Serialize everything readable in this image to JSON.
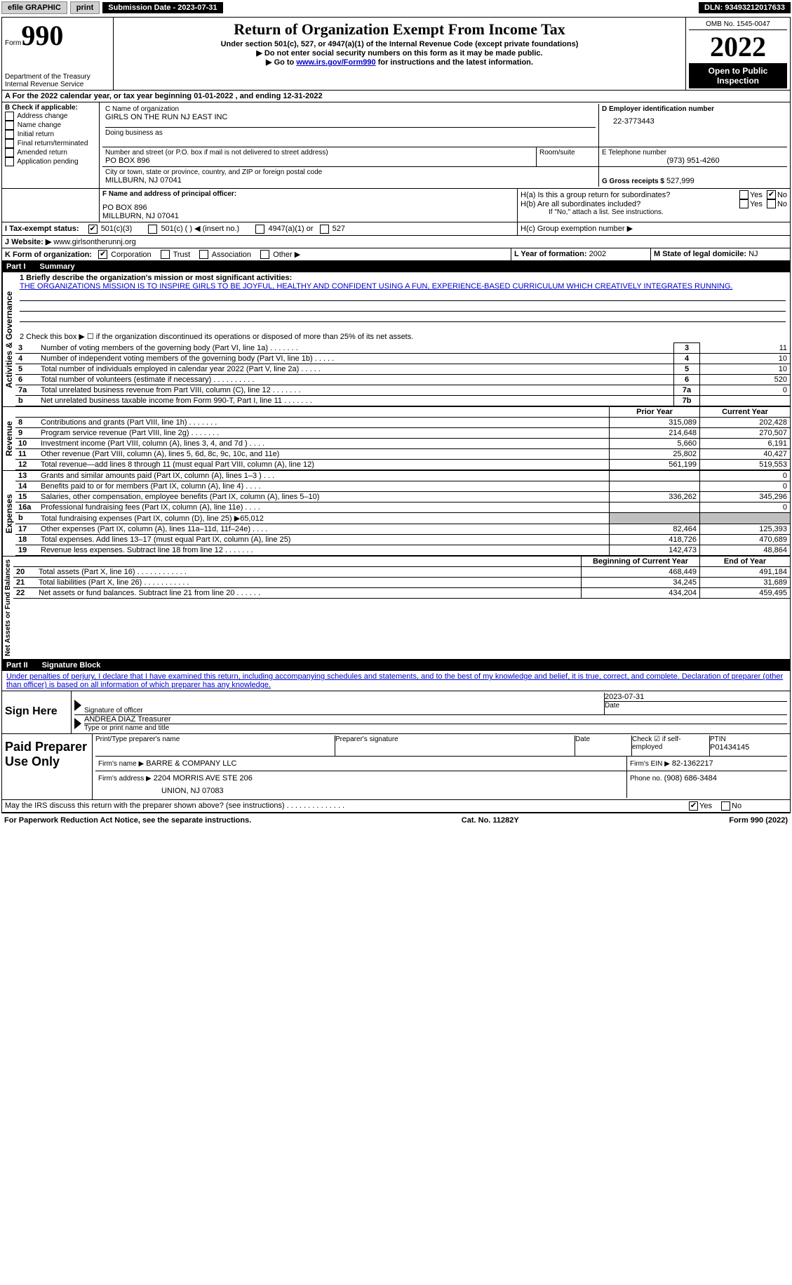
{
  "topbar": {
    "efile": "efile GRAPHIC",
    "print": "print",
    "submission": "Submission Date - 2023-07-31",
    "dln": "DLN: 93493212017633"
  },
  "header": {
    "form_prefix": "Form",
    "form_no": "990",
    "dept": "Department of the Treasury\nInternal Revenue Service",
    "title": "Return of Organization Exempt From Income Tax",
    "subtitle": "Under section 501(c), 527, or 4947(a)(1) of the Internal Revenue Code (except private foundations)",
    "inst1": "▶ Do not enter social security numbers on this form as it may be made public.",
    "inst2_pre": "▶ Go to ",
    "inst2_link": "www.irs.gov/Form990",
    "inst2_post": " for instructions and the latest information.",
    "omb": "OMB No. 1545-0047",
    "year": "2022",
    "open": "Open to Public Inspection"
  },
  "section_a": {
    "line": "A For the 2022 calendar year, or tax year beginning 01-01-2022    , and ending 12-31-2022"
  },
  "section_b": {
    "label": "B Check if applicable:",
    "items": [
      "Address change",
      "Name change",
      "Initial return",
      "Final return/terminated",
      "Amended return",
      "Application pending"
    ]
  },
  "section_c": {
    "label": "C Name of organization",
    "name": "GIRLS ON THE RUN NJ EAST INC",
    "dba_label": "Doing business as",
    "addr_label": "Number and street (or P.O. box if mail is not delivered to street address)",
    "addr": "PO BOX 896",
    "room_label": "Room/suite",
    "city_label": "City or town, state or province, country, and ZIP or foreign postal code",
    "city": "MILLBURN, NJ  07041"
  },
  "section_d": {
    "label": "D Employer identification number",
    "value": "22-3773443"
  },
  "section_e": {
    "label": "E Telephone number",
    "value": "(973) 951-4260"
  },
  "section_g": {
    "label": "G Gross receipts $",
    "value": "527,999"
  },
  "section_f": {
    "label": "F Name and address of principal officer:",
    "addr1": "PO BOX 896",
    "addr2": "MILLBURN, NJ  07041"
  },
  "section_h": {
    "ha": "H(a)  Is this a group return for subordinates?",
    "hb": "H(b)  Are all subordinates included?",
    "hb_note": "If \"No,\" attach a list. See instructions.",
    "hc": "H(c)  Group exemption number ▶",
    "yes": "Yes",
    "no": "No"
  },
  "section_i": {
    "label": "I    Tax-exempt status:",
    "opt1": "501(c)(3)",
    "opt2": "501(c) (   ) ◀ (insert no.)",
    "opt3": "4947(a)(1) or",
    "opt4": "527"
  },
  "section_j": {
    "label": "J   Website: ▶",
    "value": "www.girlsontherunnj.org"
  },
  "section_k": {
    "label": "K Form of organization:",
    "opts": [
      "Corporation",
      "Trust",
      "Association",
      "Other ▶"
    ]
  },
  "section_l": {
    "label": "L Year of formation:",
    "value": "2002"
  },
  "section_m": {
    "label": "M State of legal domicile:",
    "value": "NJ"
  },
  "part1": {
    "title_pt": "Part I",
    "title": "Summary",
    "q1_label": "1  Briefly describe the organization's mission or most significant activities:",
    "q1_text": "THE ORGANIZATIONS MISSION IS TO INSPIRE GIRLS TO BE JOYFUL, HEALTHY AND CONFIDENT USING A FUN, EXPERIENCE-BASED CURRICULUM WHICH CREATIVELY INTEGRATES RUNNING.",
    "q2": "2    Check this box ▶ ☐  if the organization discontinued its operations or disposed of more than 25% of its net assets.",
    "vert_ag": "Activities & Governance",
    "vert_rev": "Revenue",
    "vert_exp": "Expenses",
    "vert_na": "Net Assets or Fund Balances",
    "rows_ag": [
      {
        "n": "3",
        "t": "Number of voting members of the governing body (Part VI, line 1a)   .    .    .    .    .    .    .",
        "box": "3",
        "v": "11"
      },
      {
        "n": "4",
        "t": "Number of independent voting members of the governing body (Part VI, line 1b)  .    .    .    .    .",
        "box": "4",
        "v": "10"
      },
      {
        "n": "5",
        "t": "Total number of individuals employed in calendar year 2022 (Part V, line 2a)    .    .    .    .    .",
        "box": "5",
        "v": "10"
      },
      {
        "n": "6",
        "t": "Total number of volunteers (estimate if necessary)      .    .    .    .    .    .    .    .    .    .",
        "box": "6",
        "v": "520"
      },
      {
        "n": "7a",
        "t": "Total unrelated business revenue from Part VIII, column (C), line 12     .    .    .    .    .    .    .",
        "box": "7a",
        "v": "0"
      },
      {
        "n": "b",
        "t": "Net unrelated business taxable income from Form 990-T, Part I, line 11   .    .    .    .    .    .    .",
        "box": "7b",
        "v": ""
      }
    ],
    "col_prior": "Prior Year",
    "col_curr": "Current Year",
    "rows_rev": [
      {
        "n": "8",
        "t": "Contributions and grants (Part VIII, line 1h)    .    .    .    .    .    .    .",
        "p": "315,089",
        "c": "202,428"
      },
      {
        "n": "9",
        "t": "Program service revenue (Part VIII, line 2g)   .    .    .    .    .    .    .",
        "p": "214,648",
        "c": "270,507"
      },
      {
        "n": "10",
        "t": "Investment income (Part VIII, column (A), lines 3, 4, and 7d )   .    .    .    .",
        "p": "5,660",
        "c": "6,191"
      },
      {
        "n": "11",
        "t": "Other revenue (Part VIII, column (A), lines 5, 6d, 8c, 9c, 10c, and 11e)",
        "p": "25,802",
        "c": "40,427"
      },
      {
        "n": "12",
        "t": "Total revenue—add lines 8 through 11 (must equal Part VIII, column (A), line 12)",
        "p": "561,199",
        "c": "519,553"
      }
    ],
    "rows_exp": [
      {
        "n": "13",
        "t": "Grants and similar amounts paid (Part IX, column (A), lines 1–3 )   .    .    .",
        "p": "",
        "c": "0"
      },
      {
        "n": "14",
        "t": "Benefits paid to or for members (Part IX, column (A), line 4)   .    .    .    .",
        "p": "",
        "c": "0"
      },
      {
        "n": "15",
        "t": "Salaries, other compensation, employee benefits (Part IX, column (A), lines 5–10)",
        "p": "336,262",
        "c": "345,296"
      },
      {
        "n": "16a",
        "t": "Professional fundraising fees (Part IX, column (A), line 11e)    .    .    .    .",
        "p": "",
        "c": "0"
      },
      {
        "n": "b",
        "t": "Total fundraising expenses (Part IX, column (D), line 25) ▶65,012",
        "p": "grey",
        "c": "grey"
      },
      {
        "n": "17",
        "t": "Other expenses (Part IX, column (A), lines 11a–11d, 11f–24e)   .    .    .    .",
        "p": "82,464",
        "c": "125,393"
      },
      {
        "n": "18",
        "t": "Total expenses. Add lines 13–17 (must equal Part IX, column (A), line 25)",
        "p": "418,726",
        "c": "470,689"
      },
      {
        "n": "19",
        "t": "Revenue less expenses. Subtract line 18 from line 12  .    .    .    .    .    .    .",
        "p": "142,473",
        "c": "48,864"
      }
    ],
    "col_beg": "Beginning of Current Year",
    "col_end": "End of Year",
    "rows_na": [
      {
        "n": "20",
        "t": "Total assets (Part X, line 16)  .    .    .    .    .    .    .    .    .    .    .    .",
        "p": "468,449",
        "c": "491,184"
      },
      {
        "n": "21",
        "t": "Total liabilities (Part X, line 26)   .    .    .    .    .    .    .    .    .    .    .",
        "p": "34,245",
        "c": "31,689"
      },
      {
        "n": "22",
        "t": "Net assets or fund balances. Subtract line 21 from line 20   .    .    .    .    .    .",
        "p": "434,204",
        "c": "459,495"
      }
    ]
  },
  "part2": {
    "title_pt": "Part II",
    "title": "Signature Block",
    "decl": "Under penalties of perjury, I declare that I have examined this return, including accompanying schedules and statements, and to the best of my knowledge and belief, it is true, correct, and complete. Declaration of preparer (other than officer) is based on all information of which preparer has any knowledge.",
    "sign_here": "Sign Here",
    "sig_officer": "Signature of officer",
    "sig_date": "2023-07-31",
    "sig_date_label": "Date",
    "officer_name": "ANDREA DIAZ  Treasurer",
    "officer_label": "Type or print name and title",
    "paid": "Paid Preparer Use Only",
    "prep_name_label": "Print/Type preparer's name",
    "prep_sig_label": "Preparer's signature",
    "date_label": "Date",
    "check_label": "Check ☑ if self-employed",
    "ptin_label": "PTIN",
    "ptin": "P01434145",
    "firm_name_label": "Firm's name      ▶",
    "firm_name": "BARRE & COMPANY LLC",
    "firm_ein_label": "Firm's EIN ▶",
    "firm_ein": "82-1362217",
    "firm_addr_label": "Firm's address ▶",
    "firm_addr1": "2204 MORRIS AVE STE 206",
    "firm_addr2": "UNION, NJ  07083",
    "phone_label": "Phone no.",
    "phone": "(908) 686-3484",
    "discuss": "May the IRS discuss this return with the preparer shown above? (see instructions)    .    .    .    .    .    .    .    .    .    .    .    .    .    .",
    "discuss_yes": "Yes",
    "discuss_no": "No"
  },
  "footer": {
    "left": "For Paperwork Reduction Act Notice, see the separate instructions.",
    "mid": "Cat. No. 11282Y",
    "right": "Form 990 (2022)"
  }
}
